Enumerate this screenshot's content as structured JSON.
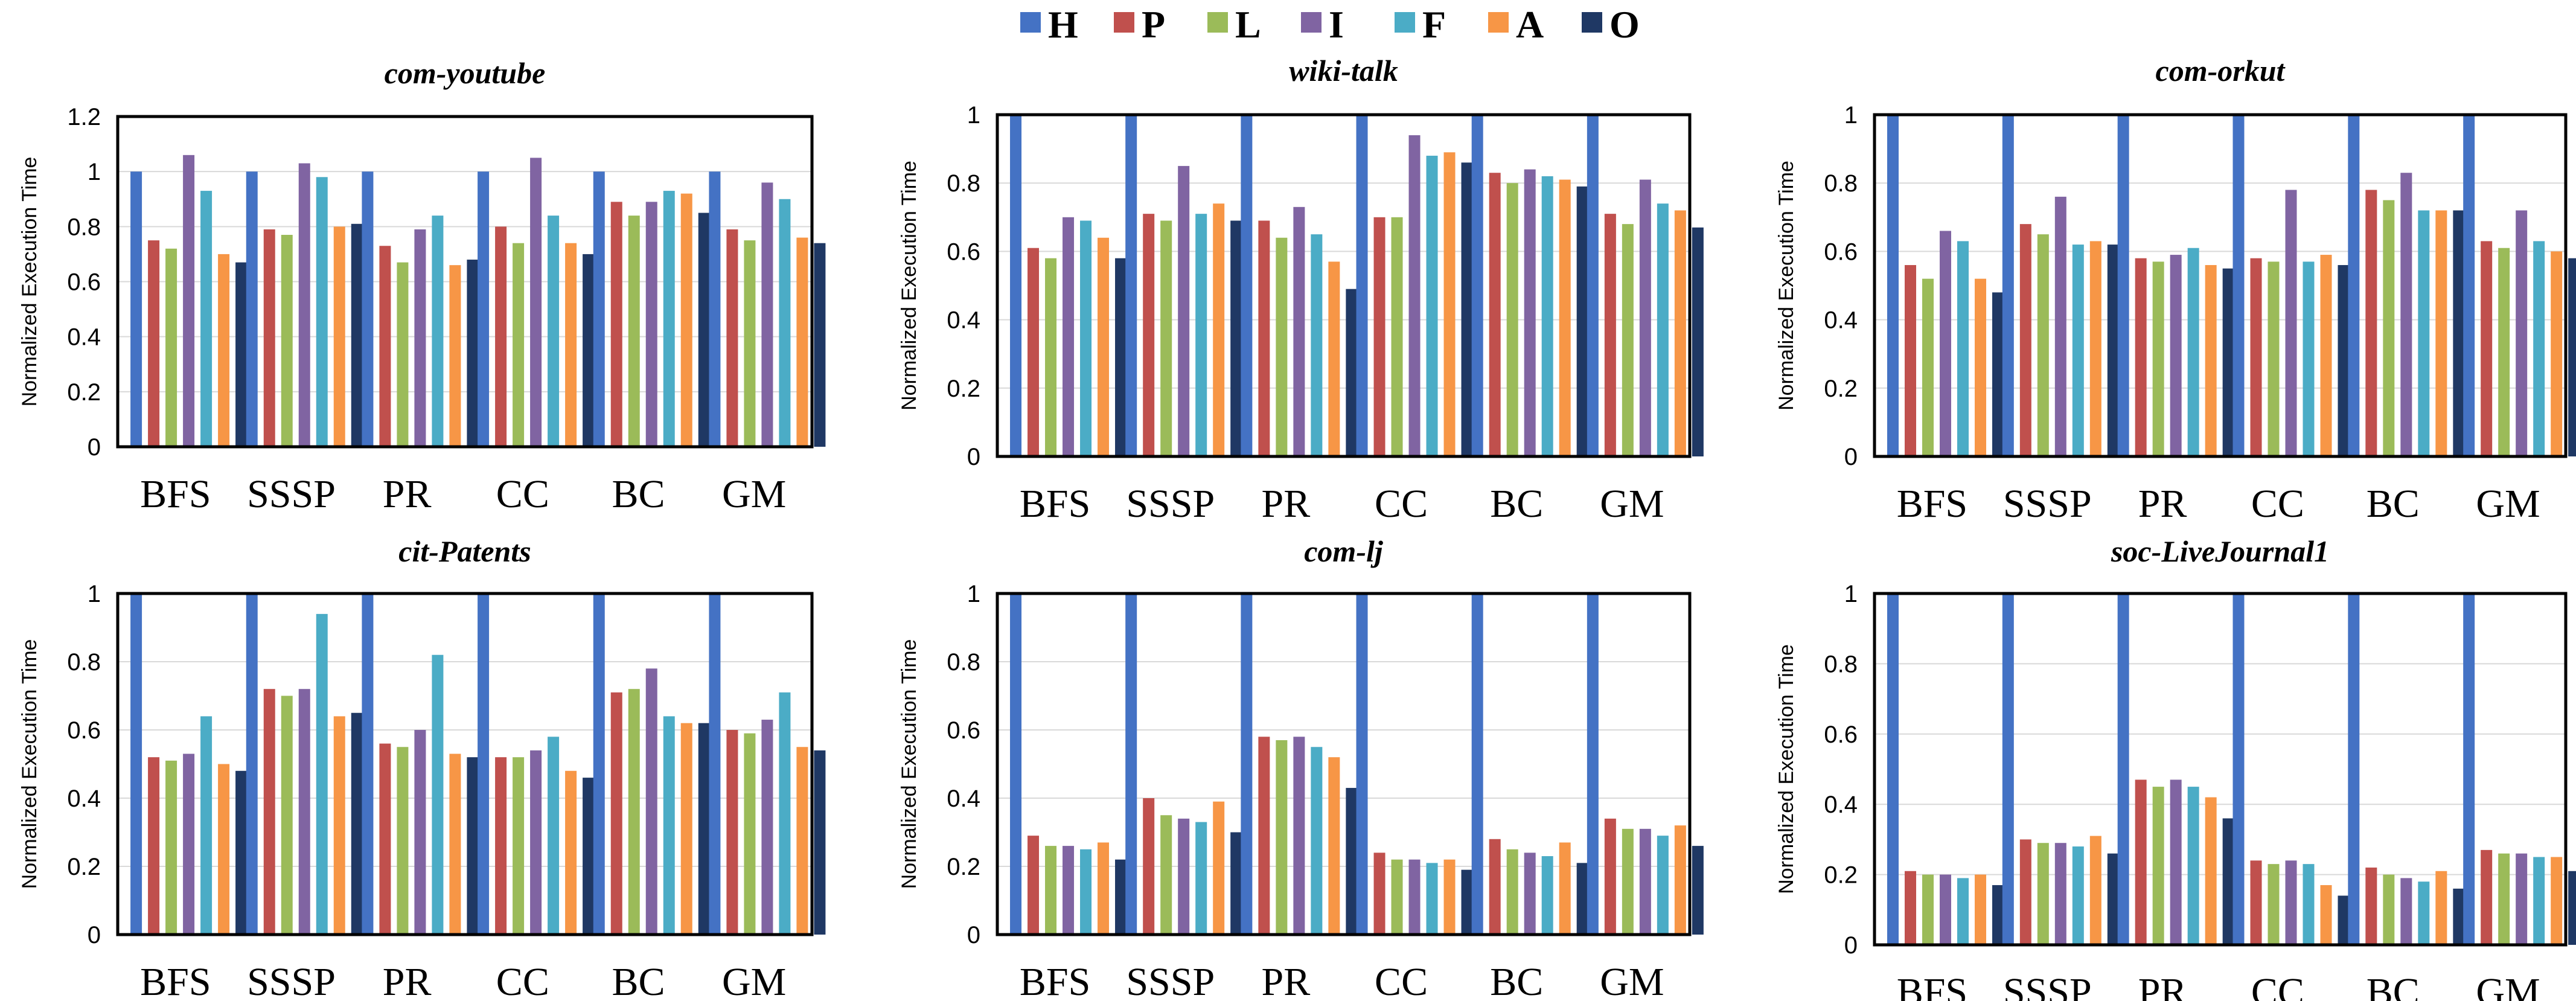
{
  "legend": [
    {
      "key": "H",
      "color": "#4472C4"
    },
    {
      "key": "P",
      "color": "#C0504D"
    },
    {
      "key": "L",
      "color": "#9BBB59"
    },
    {
      "key": "I",
      "color": "#8064A2"
    },
    {
      "key": "F",
      "color": "#4BACC6"
    },
    {
      "key": "A",
      "color": "#F79646"
    },
    {
      "key": "O",
      "color": "#1F3864"
    }
  ],
  "chart_data": [
    {
      "type": "bar",
      "title": "com-youtube",
      "ylabel": "Normalized Execution Time",
      "ylim": [
        0,
        1.2
      ],
      "yticks": [
        "0",
        "0.2",
        "0.4",
        "0.6",
        "0.8",
        "1",
        "1.2"
      ],
      "categories": [
        "BFS",
        "SSSP",
        "PR",
        "CC",
        "BC",
        "GM"
      ],
      "series": [
        {
          "name": "H",
          "values": [
            1,
            1,
            1,
            1,
            1,
            1
          ]
        },
        {
          "name": "P",
          "values": [
            0.75,
            0.79,
            0.73,
            0.8,
            0.89,
            0.79
          ]
        },
        {
          "name": "L",
          "values": [
            0.72,
            0.77,
            0.67,
            0.74,
            0.84,
            0.75
          ]
        },
        {
          "name": "I",
          "values": [
            1.06,
            1.03,
            0.79,
            1.05,
            0.89,
            0.96
          ]
        },
        {
          "name": "F",
          "values": [
            0.93,
            0.98,
            0.84,
            0.84,
            0.93,
            0.9
          ]
        },
        {
          "name": "A",
          "values": [
            0.7,
            0.8,
            0.66,
            0.74,
            0.92,
            0.76
          ]
        },
        {
          "name": "O",
          "values": [
            0.67,
            0.81,
            0.68,
            0.7,
            0.85,
            0.74
          ]
        }
      ]
    },
    {
      "type": "bar",
      "title": "wiki-talk",
      "ylabel": "Normalized Execution Time",
      "ylim": [
        0,
        1
      ],
      "yticks": [
        "0",
        "0.2",
        "0.4",
        "0.6",
        "0.8",
        "1"
      ],
      "categories": [
        "BFS",
        "SSSP",
        "PR",
        "CC",
        "BC",
        "GM"
      ],
      "series": [
        {
          "name": "H",
          "values": [
            1,
            1,
            1,
            1,
            1,
            1
          ]
        },
        {
          "name": "P",
          "values": [
            0.61,
            0.71,
            0.69,
            0.7,
            0.83,
            0.71
          ]
        },
        {
          "name": "L",
          "values": [
            0.58,
            0.69,
            0.64,
            0.7,
            0.8,
            0.68
          ]
        },
        {
          "name": "I",
          "values": [
            0.7,
            0.85,
            0.73,
            0.94,
            0.84,
            0.81
          ]
        },
        {
          "name": "F",
          "values": [
            0.69,
            0.71,
            0.65,
            0.88,
            0.82,
            0.74
          ]
        },
        {
          "name": "A",
          "values": [
            0.64,
            0.74,
            0.57,
            0.89,
            0.81,
            0.72
          ]
        },
        {
          "name": "O",
          "values": [
            0.58,
            0.69,
            0.49,
            0.86,
            0.79,
            0.67
          ]
        }
      ]
    },
    {
      "type": "bar",
      "title": "com-orkut",
      "ylabel": "Normalized Execution Time",
      "ylim": [
        0,
        1
      ],
      "yticks": [
        "0",
        "0.2",
        "0.4",
        "0.6",
        "0.8",
        "1"
      ],
      "categories": [
        "BFS",
        "SSSP",
        "PR",
        "CC",
        "BC",
        "GM"
      ],
      "series": [
        {
          "name": "H",
          "values": [
            1,
            1,
            1,
            1,
            1,
            1
          ]
        },
        {
          "name": "P",
          "values": [
            0.56,
            0.68,
            0.58,
            0.58,
            0.78,
            0.63
          ]
        },
        {
          "name": "L",
          "values": [
            0.52,
            0.65,
            0.57,
            0.57,
            0.75,
            0.61
          ]
        },
        {
          "name": "I",
          "values": [
            0.66,
            0.76,
            0.59,
            0.78,
            0.83,
            0.72
          ]
        },
        {
          "name": "F",
          "values": [
            0.63,
            0.62,
            0.61,
            0.57,
            0.72,
            0.63
          ]
        },
        {
          "name": "A",
          "values": [
            0.52,
            0.63,
            0.56,
            0.59,
            0.72,
            0.6
          ]
        },
        {
          "name": "O",
          "values": [
            0.48,
            0.62,
            0.55,
            0.56,
            0.72,
            0.58
          ]
        }
      ]
    },
    {
      "type": "bar",
      "title": "cit-Patents",
      "ylabel": "Normalized Execution Time",
      "ylim": [
        0,
        1
      ],
      "yticks": [
        "0",
        "0.2",
        "0.4",
        "0.6",
        "0.8",
        "1"
      ],
      "categories": [
        "BFS",
        "SSSP",
        "PR",
        "CC",
        "BC",
        "GM"
      ],
      "series": [
        {
          "name": "H",
          "values": [
            1,
            1,
            1,
            1,
            1,
            1
          ]
        },
        {
          "name": "P",
          "values": [
            0.52,
            0.72,
            0.56,
            0.52,
            0.71,
            0.6
          ]
        },
        {
          "name": "L",
          "values": [
            0.51,
            0.7,
            0.55,
            0.52,
            0.72,
            0.59
          ]
        },
        {
          "name": "I",
          "values": [
            0.53,
            0.72,
            0.6,
            0.54,
            0.78,
            0.63
          ]
        },
        {
          "name": "F",
          "values": [
            0.64,
            0.94,
            0.82,
            0.58,
            0.64,
            0.71
          ]
        },
        {
          "name": "A",
          "values": [
            0.5,
            0.64,
            0.53,
            0.48,
            0.62,
            0.55
          ]
        },
        {
          "name": "O",
          "values": [
            0.48,
            0.65,
            0.52,
            0.46,
            0.62,
            0.54
          ]
        }
      ]
    },
    {
      "type": "bar",
      "title": "com-lj",
      "ylabel": "Normalized Execution Time",
      "ylim": [
        0,
        1
      ],
      "yticks": [
        "0",
        "0.2",
        "0.4",
        "0.6",
        "0.8",
        "1"
      ],
      "categories": [
        "BFS",
        "SSSP",
        "PR",
        "CC",
        "BC",
        "GM"
      ],
      "series": [
        {
          "name": "H",
          "values": [
            1,
            1,
            1,
            1,
            1,
            1
          ]
        },
        {
          "name": "P",
          "values": [
            0.29,
            0.4,
            0.58,
            0.24,
            0.28,
            0.34
          ]
        },
        {
          "name": "L",
          "values": [
            0.26,
            0.35,
            0.57,
            0.22,
            0.25,
            0.31
          ]
        },
        {
          "name": "I",
          "values": [
            0.26,
            0.34,
            0.58,
            0.22,
            0.24,
            0.31
          ]
        },
        {
          "name": "F",
          "values": [
            0.25,
            0.33,
            0.55,
            0.21,
            0.23,
            0.29
          ]
        },
        {
          "name": "A",
          "values": [
            0.27,
            0.39,
            0.52,
            0.22,
            0.27,
            0.32
          ]
        },
        {
          "name": "O",
          "values": [
            0.22,
            0.3,
            0.43,
            0.19,
            0.21,
            0.26
          ]
        }
      ]
    },
    {
      "type": "bar",
      "title": "soc-LiveJournal1",
      "ylabel": "Normalized Execution Time",
      "ylim": [
        0,
        1
      ],
      "yticks": [
        "0",
        "0.2",
        "0.4",
        "0.6",
        "0.8",
        "1"
      ],
      "categories": [
        "BFS",
        "SSSP",
        "PR",
        "CC",
        "BC",
        "GM"
      ],
      "series": [
        {
          "name": "H",
          "values": [
            1,
            1,
            1,
            1,
            1,
            1
          ]
        },
        {
          "name": "P",
          "values": [
            0.21,
            0.3,
            0.47,
            0.24,
            0.22,
            0.27
          ]
        },
        {
          "name": "L",
          "values": [
            0.2,
            0.29,
            0.45,
            0.23,
            0.2,
            0.26
          ]
        },
        {
          "name": "I",
          "values": [
            0.2,
            0.29,
            0.47,
            0.24,
            0.19,
            0.26
          ]
        },
        {
          "name": "F",
          "values": [
            0.19,
            0.28,
            0.45,
            0.23,
            0.18,
            0.25
          ]
        },
        {
          "name": "A",
          "values": [
            0.2,
            0.31,
            0.42,
            0.17,
            0.21,
            0.25
          ]
        },
        {
          "name": "O",
          "values": [
            0.17,
            0.26,
            0.36,
            0.14,
            0.16,
            0.21
          ]
        }
      ]
    }
  ]
}
